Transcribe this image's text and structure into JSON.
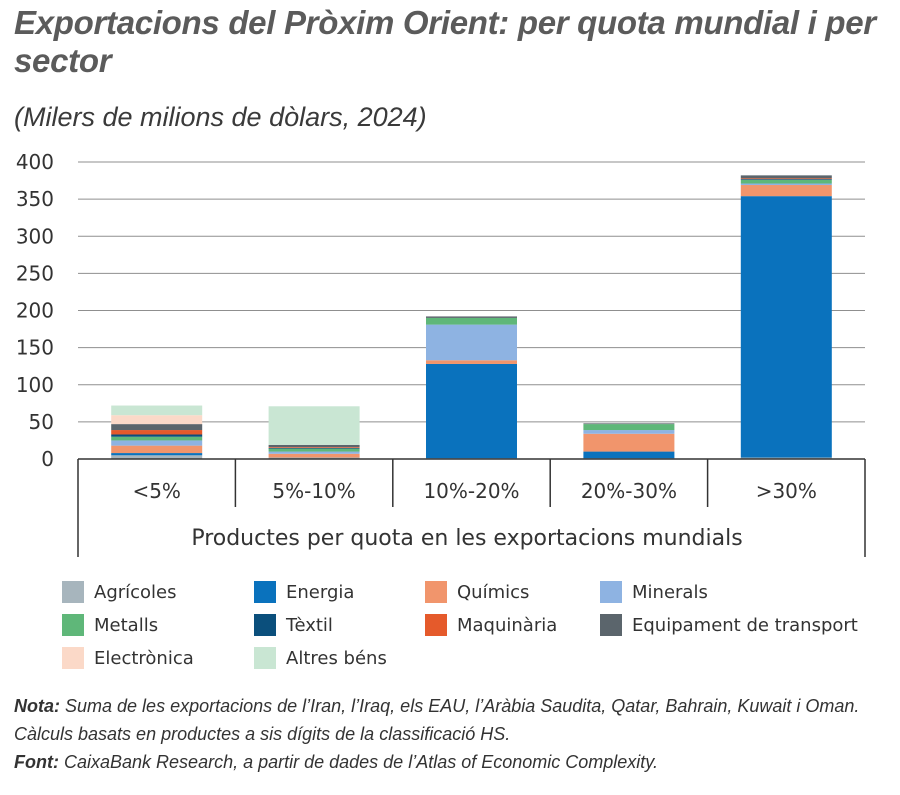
{
  "title": "Exportacions del Pròxim Orient: per quota mundial i per sector",
  "subtitle": "(Milers de milions de dòlars, 2024)",
  "note_label": "Nota:",
  "note_text": "Suma de les exportacions de l’Iran, l’Iraq, els EAU, l’Aràbia Saudita, Qatar, Bahrain, Kuwait i Oman. Càlculs basats en productes a sis dígits de la classificació HS.",
  "source_label": "Font:",
  "source_text": "CaixaBank Research, a partir de dades de l’Atlas of Economic Complexity.",
  "chart_data": {
    "type": "bar",
    "stacked": true,
    "xlabel": "Productes per quota en les exportacions mundials",
    "ylabel": "",
    "ylim": [
      0,
      400
    ],
    "yticks": [
      "0",
      "50",
      "100",
      "150",
      "200",
      "250",
      "300",
      "350",
      "400"
    ],
    "grid": true,
    "legend_position": "bottom",
    "categories": [
      "<5%",
      "5%-10%",
      "10%-20%",
      "20%-30%",
      ">30%"
    ],
    "series": [
      {
        "name": "Agrícoles",
        "color": "#a7b5bd",
        "values": [
          5,
          2,
          1,
          1,
          2
        ]
      },
      {
        "name": "Energia",
        "color": "#0a72bd",
        "values": [
          3,
          0,
          127,
          9,
          352
        ]
      },
      {
        "name": "Químics",
        "color": "#f1956c",
        "values": [
          10,
          5,
          5,
          24,
          15
        ]
      },
      {
        "name": "Minerals",
        "color": "#8eb3e2",
        "values": [
          7,
          3,
          48,
          5,
          2
        ]
      },
      {
        "name": "Metalls",
        "color": "#5fb779",
        "values": [
          5,
          4,
          9,
          8,
          5
        ]
      },
      {
        "name": "Tèxtil",
        "color": "#0b4f7c",
        "values": [
          3,
          1,
          0,
          0,
          1
        ]
      },
      {
        "name": "Maquinària",
        "color": "#e55a2b",
        "values": [
          6,
          1,
          0,
          0,
          1
        ]
      },
      {
        "name": "Equipament de transport",
        "color": "#5b656c",
        "values": [
          8,
          3,
          2,
          1,
          4
        ]
      },
      {
        "name": "Electrònica",
        "color": "#fbd9c8",
        "values": [
          12,
          0,
          0,
          0,
          0
        ]
      },
      {
        "name": "Altres béns",
        "color": "#c9e6d3",
        "values": [
          13,
          52,
          0,
          0,
          0
        ]
      }
    ]
  }
}
